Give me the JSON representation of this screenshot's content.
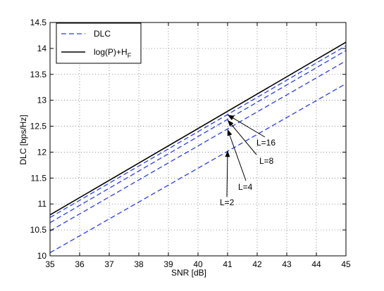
{
  "chart_data": {
    "type": "line",
    "xlabel": "SNR [dB]",
    "ylabel": "DLC [bps/Hz]",
    "xlim": [
      35,
      45
    ],
    "ylim": [
      10,
      14.5
    ],
    "xticks": [
      "35",
      "36",
      "37",
      "38",
      "39",
      "40",
      "41",
      "42",
      "43",
      "44",
      "45"
    ],
    "yticks": [
      "10",
      "10.5",
      "11",
      "11.5",
      "12",
      "12.5",
      "13",
      "13.5",
      "14",
      "14.5"
    ],
    "grid": true,
    "legend_position": "top-left",
    "legend": [
      {
        "label": "DLC",
        "style": "dashed",
        "color": "#2b3fe0"
      },
      {
        "label_main": "log(P)+H",
        "label_sub": "F",
        "style": "solid",
        "color": "#000000"
      }
    ],
    "series": [
      {
        "style": "solid",
        "color": "#000000",
        "x": [
          35,
          45
        ],
        "y": [
          10.79,
          14.12
        ]
      },
      {
        "style": "dashed",
        "color": "#2b3fe0",
        "x": [
          35,
          45
        ],
        "y": [
          10.74,
          14.05
        ]
      },
      {
        "style": "dashed",
        "color": "#2b3fe0",
        "x": [
          35,
          45
        ],
        "y": [
          10.64,
          13.96
        ]
      },
      {
        "style": "dashed",
        "color": "#2b3fe0",
        "x": [
          35,
          45
        ],
        "y": [
          10.48,
          13.76
        ]
      },
      {
        "style": "dashed",
        "color": "#2b3fe0",
        "x": [
          35,
          45
        ],
        "y": [
          10.06,
          13.32
        ]
      }
    ],
    "annotations": [
      {
        "text": "L=16",
        "target": [
          41,
          12.72
        ]
      },
      {
        "text": "L=8",
        "target": [
          41,
          12.62
        ]
      },
      {
        "text": "L=4",
        "target": [
          41,
          12.44
        ]
      },
      {
        "text": "L=2",
        "target": [
          41,
          12.03
        ]
      }
    ]
  }
}
